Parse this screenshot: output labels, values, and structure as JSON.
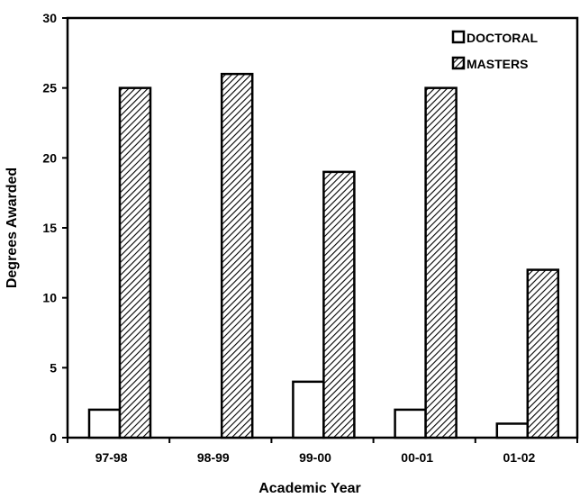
{
  "chart_data": {
    "type": "bar",
    "title": "",
    "xlabel": "Academic Year",
    "ylabel": "Degrees Awarded",
    "categories": [
      "97-98",
      "98-99",
      "99-00",
      "00-01",
      "01-02"
    ],
    "series": [
      {
        "name": "DOCTORAL",
        "values": [
          2,
          0,
          4,
          2,
          1
        ],
        "fill": "#ffffff",
        "pattern": "none"
      },
      {
        "name": "MASTERS",
        "values": [
          25,
          26,
          19,
          25,
          12
        ],
        "fill": "#ffffff",
        "pattern": "diagonal-hatch"
      }
    ],
    "ylim": [
      0,
      30
    ],
    "yticks": [
      0,
      5,
      10,
      15,
      20,
      25,
      30
    ],
    "grid": false,
    "legend": "top-right",
    "colors": {
      "axis": "#000000",
      "hatch": "#000000",
      "background": "#ffffff"
    }
  }
}
